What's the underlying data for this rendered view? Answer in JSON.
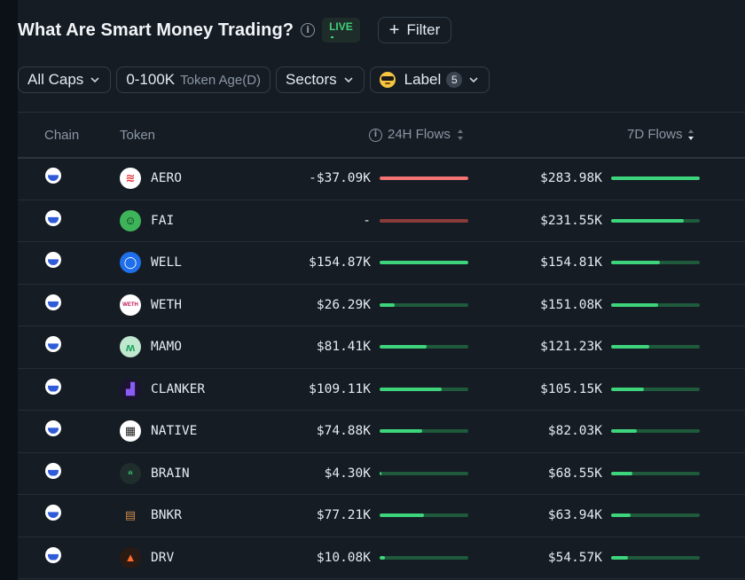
{
  "header": {
    "title": "What Are Smart Money Trading?",
    "info_glyph": "i",
    "live_label": "LIVE",
    "filter_label": "Filter"
  },
  "filters": {
    "caps_label": "All Caps",
    "age_value": "0-100K",
    "age_label": "Token Age(D)",
    "sectors_label": "Sectors",
    "label_label": "Label",
    "label_count": "5"
  },
  "table": {
    "headers": {
      "chain": "Chain",
      "token": "Token",
      "flows_24h": "24H Flows",
      "flows_7d": "7D Flows"
    },
    "rows": [
      {
        "token": "AERO",
        "flow_24h": "-$37.09K",
        "bar_24h": 1.0,
        "neg_24h": true,
        "flow_7d": "$283.98K",
        "bar_7d": 1.0,
        "icon_bg": "#ffffff",
        "icon_fg": "#e5333a",
        "icon_glyph": "≋"
      },
      {
        "token": "FAI",
        "flow_24h": "-",
        "bar_24h": 0.0,
        "neg_24h": true,
        "flow_7d": "$231.55K",
        "bar_7d": 0.82,
        "icon_bg": "#3db35a",
        "icon_fg": "#0b2a12",
        "icon_glyph": "☺"
      },
      {
        "token": "WELL",
        "flow_24h": "$154.87K",
        "bar_24h": 1.0,
        "neg_24h": false,
        "flow_7d": "$154.81K",
        "bar_7d": 0.55,
        "icon_bg": "#1f6feb",
        "icon_fg": "#ffffff",
        "icon_glyph": "◯"
      },
      {
        "token": "WETH",
        "flow_24h": "$26.29K",
        "bar_24h": 0.17,
        "neg_24h": false,
        "flow_7d": "$151.08K",
        "bar_7d": 0.53,
        "icon_bg": "#ffffff",
        "icon_fg": "#c2185b",
        "icon_glyph": "WETH"
      },
      {
        "token": "MAMO",
        "flow_24h": "$81.41K",
        "bar_24h": 0.53,
        "neg_24h": false,
        "flow_7d": "$121.23K",
        "bar_7d": 0.43,
        "icon_bg": "#bfe8cf",
        "icon_fg": "#1aa25a",
        "icon_glyph": "ʍ"
      },
      {
        "token": "CLANKER",
        "flow_24h": "$109.11K",
        "bar_24h": 0.7,
        "neg_24h": false,
        "flow_7d": "$105.15K",
        "bar_7d": 0.37,
        "icon_bg": "#1b1330",
        "icon_fg": "#8a5cf6",
        "icon_glyph": "▟"
      },
      {
        "token": "NATIVE",
        "flow_24h": "$74.88K",
        "bar_24h": 0.48,
        "neg_24h": false,
        "flow_7d": "$82.03K",
        "bar_7d": 0.29,
        "icon_bg": "#ffffff",
        "icon_fg": "#222222",
        "icon_glyph": "▦"
      },
      {
        "token": "BRAIN",
        "flow_24h": "$4.30K",
        "bar_24h": 0.02,
        "neg_24h": false,
        "flow_7d": "$68.55K",
        "bar_7d": 0.24,
        "icon_bg": "#1f2e2c",
        "icon_fg": "#3ed47c",
        "icon_glyph": "ılı"
      },
      {
        "token": "BNKR",
        "flow_24h": "$77.21K",
        "bar_24h": 0.5,
        "neg_24h": false,
        "flow_7d": "$63.94K",
        "bar_7d": 0.22,
        "icon_bg": "#151c24",
        "icon_fg": "#c9884a",
        "icon_glyph": "▤"
      },
      {
        "token": "DRV",
        "flow_24h": "$10.08K",
        "bar_24h": 0.06,
        "neg_24h": false,
        "flow_7d": "$54.57K",
        "bar_7d": 0.19,
        "icon_bg": "#2a1a14",
        "icon_fg": "#ff6a2b",
        "icon_glyph": "▲"
      }
    ]
  },
  "colors": {
    "positive": "#3ed47c",
    "negative": "#f27474",
    "live": "#3fd07a",
    "background": "#151c24"
  }
}
